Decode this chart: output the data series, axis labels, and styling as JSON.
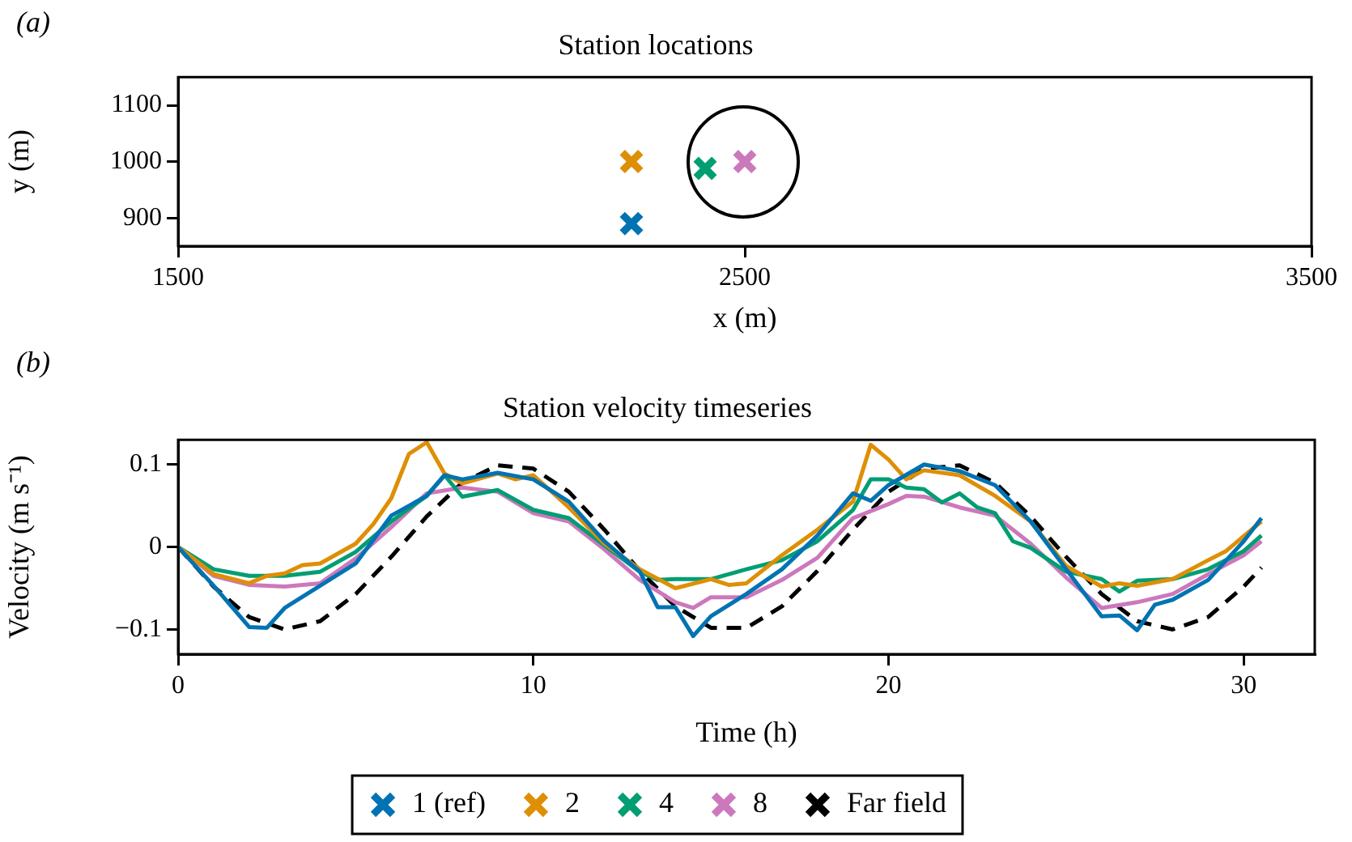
{
  "chart_data": [
    {
      "type": "scatter",
      "title": "Station locations",
      "xlabel": "x (m)",
      "ylabel": "y (m)",
      "annotations": [
        "(a)"
      ],
      "xlim": [
        1500,
        3500
      ],
      "ylim": [
        850,
        1150
      ],
      "xticks": [
        1500,
        2500,
        3500
      ],
      "yticks": [
        900,
        1000,
        1100
      ],
      "grid": false,
      "legend": false,
      "marker": "cross",
      "series": [
        {
          "x": [
            2300,
            2300,
            2430,
            2500
          ],
          "values": [
            890,
            1000,
            988,
            1000
          ],
          "colors": [
            "#0173b2",
            "#de8f05",
            "#029e73",
            "#cc78bc"
          ]
        }
      ]
    },
    {
      "type": "line",
      "title": "Station velocity timeseries",
      "xlabel": "Time (h)",
      "ylabel": "Velocity (m s⁻¹)",
      "annotations": [
        "(b)"
      ],
      "xlim": [
        0,
        32
      ],
      "ylim": [
        -0.13,
        0.13
      ],
      "xticks": [
        0,
        10,
        20,
        30
      ],
      "yticks": [
        {
          "value": -0.1,
          "label": "−0.1"
        },
        0,
        0.1
      ],
      "grid": false,
      "legend": "bottom",
      "marker": "none",
      "line_style": "solid",
      "series": [
        {
          "name": "1 (ref)",
          "color": "#0173b2",
          "x": [
            0,
            1,
            2,
            2.5,
            3,
            4,
            5,
            6,
            7,
            7.5,
            8,
            9,
            10,
            11,
            12,
            13,
            13.5,
            14,
            14.5,
            15,
            16,
            17,
            18,
            19,
            19.5,
            20,
            21,
            22,
            23,
            24,
            25,
            26,
            26.5,
            27,
            27.5,
            28,
            29,
            30,
            30.5
          ],
          "values": [
            0,
            -0.047,
            -0.097,
            -0.098,
            -0.074,
            -0.047,
            -0.02,
            0.038,
            0.062,
            0.087,
            0.082,
            0.09,
            0.082,
            0.055,
            0.007,
            -0.03,
            -0.073,
            -0.073,
            -0.108,
            -0.084,
            -0.057,
            -0.027,
            0.014,
            0.065,
            0.056,
            0.075,
            0.1,
            0.092,
            0.075,
            0.031,
            -0.027,
            -0.084,
            -0.083,
            -0.101,
            -0.07,
            -0.064,
            -0.04,
            0.007,
            0.035
          ]
        },
        {
          "name": "2",
          "color": "#de8f05",
          "x": [
            0,
            1,
            2,
            2.5,
            3,
            3.5,
            4,
            5,
            5.5,
            6,
            6.5,
            7,
            7.5,
            8,
            9,
            9.5,
            10,
            11,
            12,
            13,
            14,
            15,
            15.5,
            16,
            17,
            18,
            19,
            19.5,
            20,
            20.5,
            21,
            22,
            23,
            24,
            25,
            26,
            26.5,
            27,
            28,
            29,
            29.5,
            30.5
          ],
          "values": [
            0,
            -0.033,
            -0.044,
            -0.035,
            -0.032,
            -0.022,
            -0.02,
            0.004,
            0.028,
            0.059,
            0.113,
            0.127,
            0.089,
            0.077,
            0.089,
            0.082,
            0.087,
            0.048,
            0.004,
            -0.027,
            -0.05,
            -0.039,
            -0.046,
            -0.044,
            -0.01,
            0.021,
            0.055,
            0.124,
            0.106,
            0.082,
            0.093,
            0.087,
            0.062,
            0.031,
            -0.023,
            -0.048,
            -0.044,
            -0.047,
            -0.039,
            -0.016,
            -0.005,
            0.031
          ]
        },
        {
          "name": "4",
          "color": "#029e73",
          "x": [
            0,
            1,
            2,
            3,
            4,
            5,
            6,
            7,
            7.5,
            8,
            9,
            10,
            11,
            12,
            13,
            13.5,
            14,
            15,
            16,
            17,
            18,
            19,
            19.5,
            20,
            20.5,
            21,
            21.5,
            22,
            22.5,
            23,
            23.5,
            24,
            25,
            26,
            26.5,
            27,
            28,
            29,
            30,
            30.5
          ],
          "values": [
            0,
            -0.027,
            -0.035,
            -0.035,
            -0.03,
            -0.006,
            0.031,
            0.062,
            0.087,
            0.061,
            0.069,
            0.045,
            0.035,
            0.002,
            -0.03,
            -0.04,
            -0.039,
            -0.039,
            -0.027,
            -0.016,
            0.007,
            0.045,
            0.082,
            0.082,
            0.072,
            0.07,
            0.054,
            0.065,
            0.048,
            0.041,
            0.007,
            -0.001,
            -0.03,
            -0.039,
            -0.054,
            -0.041,
            -0.039,
            -0.027,
            -0.005,
            0.014
          ]
        },
        {
          "name": "8",
          "color": "#cc78bc",
          "x": [
            0,
            1,
            2,
            3,
            4,
            5,
            6,
            7,
            8,
            9,
            10,
            11,
            12,
            13,
            14,
            14.5,
            15,
            16,
            17,
            18,
            19,
            20,
            20.5,
            21,
            22,
            23,
            24,
            25,
            26,
            27,
            28,
            29,
            30,
            30.5
          ],
          "values": [
            0,
            -0.035,
            -0.046,
            -0.048,
            -0.044,
            -0.014,
            0.024,
            0.065,
            0.072,
            0.067,
            0.041,
            0.031,
            -0.003,
            -0.04,
            -0.067,
            -0.074,
            -0.061,
            -0.061,
            -0.04,
            -0.013,
            0.035,
            0.052,
            0.062,
            0.061,
            0.048,
            0.038,
            0.004,
            -0.037,
            -0.074,
            -0.067,
            -0.057,
            -0.033,
            -0.01,
            0.007
          ]
        },
        {
          "name": "Far field",
          "color": "#000000",
          "line_style": "dashed",
          "x": [
            0,
            1,
            2,
            3,
            4,
            5,
            6,
            7,
            8,
            9,
            10,
            11,
            12,
            13,
            14,
            15,
            16,
            17,
            18,
            19,
            20,
            21,
            22,
            23,
            24,
            25,
            26,
            27,
            28,
            29,
            30,
            30.5
          ],
          "values": [
            0,
            -0.048,
            -0.085,
            -0.1,
            -0.09,
            -0.057,
            -0.012,
            0.037,
            0.078,
            0.099,
            0.095,
            0.067,
            0.021,
            -0.029,
            -0.072,
            -0.098,
            -0.098,
            -0.072,
            -0.029,
            0.021,
            0.067,
            0.095,
            0.099,
            0.078,
            0.037,
            -0.012,
            -0.057,
            -0.09,
            -0.1,
            -0.085,
            -0.048,
            -0.025
          ]
        }
      ]
    }
  ]
}
